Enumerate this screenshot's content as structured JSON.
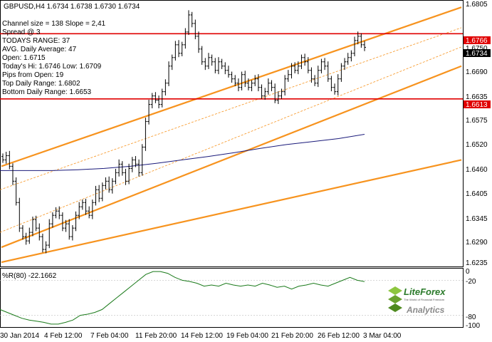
{
  "header": {
    "symbol_line": "GBPUSD,H4  1.6734 1.6738 1.6730 1.6734"
  },
  "info_lines": [
    "Channel size = 138 Slope = 2,41",
    "Spread @ 3",
    "TODAYS RANGE: 37",
    "AVG. Daily Average: 47",
    "Open: 1.6715",
    "Today's Hi: 1.6746  Low: 1.6709",
    "Pips from Open: 19",
    "Top Daily Range: 1.6802",
    "Bottom Daily Range: 1.6653"
  ],
  "price_scale": {
    "ticks": [
      "1.6805",
      "1.6750",
      "1.6690",
      "1.6635",
      "1.6575",
      "1.6520",
      "1.6460",
      "1.6405",
      "1.6345",
      "1.6290",
      "1.6235"
    ],
    "marker_red_upper": "1.6766",
    "marker_red_lower": "1.6613",
    "marker_current": "1.6734"
  },
  "time_scale": {
    "labels": [
      "30 Jan 2014",
      "4 Feb 12:00",
      "7 Feb 04:00",
      "11 Feb 20:00",
      "14 Feb 12:00",
      "19 Feb 04:00",
      "21 Feb 20:00",
      "26 Feb 12:00",
      "3 Mar 04:00"
    ]
  },
  "indicator": {
    "label": "%R(80) -22.1662",
    "ticks": [
      "0",
      "-20",
      "-80",
      "-100"
    ]
  },
  "logo": {
    "brand": "LiteForex",
    "tagline": "The World of Financial Freedom",
    "sub": "Analytics"
  },
  "colors": {
    "channel": "#f7931e",
    "level": "#e00000",
    "price": "#000000",
    "ma": "#1a1a7a",
    "indicator": "#1a7a1a"
  },
  "chart_data": {
    "type": "candlestick",
    "symbol": "GBPUSD",
    "timeframe": "H4",
    "ylim": [
      1.622,
      1.6845
    ],
    "levels": [
      1.6766,
      1.6613
    ],
    "current": 1.6734,
    "price_path": [
      1.647,
      1.648,
      1.6455,
      1.642,
      1.637,
      1.631,
      1.629,
      1.628,
      1.63,
      1.633,
      1.631,
      1.629,
      1.626,
      1.627,
      1.632,
      1.634,
      1.635,
      1.634,
      1.631,
      1.632,
      1.629,
      1.631,
      1.634,
      1.636,
      1.637,
      1.635,
      1.634,
      1.637,
      1.64,
      1.638,
      1.641,
      1.642,
      1.64,
      1.642,
      1.644,
      1.646,
      1.644,
      1.642,
      1.645,
      1.647,
      1.646,
      1.644,
      1.65,
      1.656,
      1.66,
      1.662,
      1.661,
      1.66,
      1.663,
      1.665,
      1.669,
      1.671,
      1.674,
      1.672,
      1.674,
      1.677,
      1.681,
      1.679,
      1.676,
      1.673,
      1.67,
      1.669,
      1.671,
      1.67,
      1.668,
      1.67,
      1.669,
      1.668,
      1.667,
      1.666,
      1.665,
      1.664,
      1.667,
      1.665,
      1.664,
      1.665,
      1.666,
      1.664,
      1.662,
      1.663,
      1.665,
      1.664,
      1.661,
      1.662,
      1.663,
      1.666,
      1.667,
      1.669,
      1.668,
      1.669,
      1.671,
      1.67,
      1.668,
      1.666,
      1.665,
      1.668,
      1.67,
      1.669,
      1.666,
      1.664,
      1.663,
      1.666,
      1.669,
      1.67,
      1.671,
      1.672,
      1.675,
      1.676,
      1.674,
      1.6734
    ],
    "moving_average": [
      1.6445,
      1.6445,
      1.6445,
      1.6447,
      1.645,
      1.6455,
      1.6462,
      1.647,
      1.6478,
      1.6487,
      1.6497,
      1.6506,
      1.6513,
      1.652,
      1.653
    ],
    "channels": [
      {
        "p0": [
          0,
          1.6455
        ],
        "p1": [
          1,
          1.6828
        ]
      },
      {
        "p0": [
          0,
          1.6265
        ],
        "p1": [
          1,
          1.669
        ]
      },
      {
        "p0": [
          0,
          1.623
        ],
        "p1": [
          1,
          1.647
        ]
      }
    ],
    "williams_r": [
      -70,
      -75,
      -80,
      -85,
      -88,
      -90,
      -92,
      -95,
      -95,
      -92,
      -88,
      -80,
      -78,
      -75,
      -70,
      -60,
      -50,
      -40,
      -30,
      -20,
      -10,
      -5,
      -5,
      -8,
      -15,
      -20,
      -22,
      -25,
      -30,
      -28,
      -30,
      -25,
      -28,
      -30,
      -28,
      -30,
      -25,
      -28,
      -32,
      -30,
      -35,
      -30,
      -28,
      -25,
      -28,
      -30,
      -25,
      -20,
      -15,
      -20,
      -22.1662
    ]
  }
}
